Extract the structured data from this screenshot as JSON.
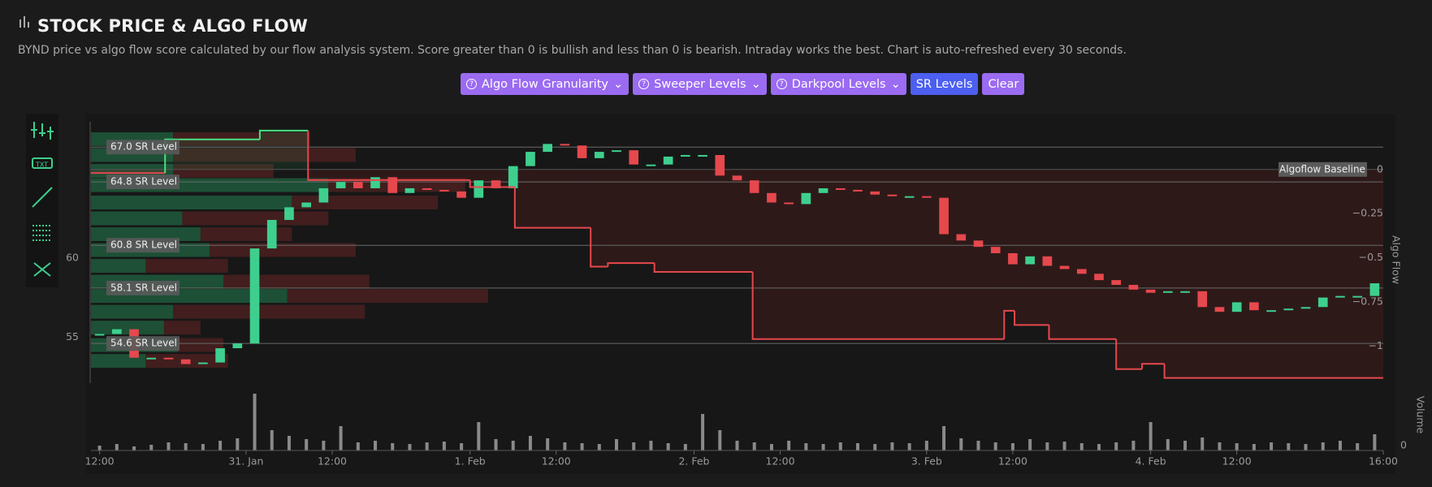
{
  "header": {
    "title": "STOCK PRICE & ALGO FLOW",
    "description": "BYND price vs algo flow score calculated by our flow analysis system. Score greater than 0 is bullish and less than 0 is bearish. Intraday works the best. Chart is auto-refreshed every 30 seconds."
  },
  "controls": [
    "Algo Flow Granularity",
    "Sweeper Levels",
    "Darkpool Levels",
    "SR Levels",
    "Clear"
  ],
  "chart_data": {
    "type": "candlestick",
    "xlim": [
      0,
      75
    ],
    "xticks": [
      {
        "value": 0.5,
        "label": "12:00"
      },
      {
        "value": 9,
        "label": "31. Jan"
      },
      {
        "value": 14,
        "label": "12:00"
      },
      {
        "value": 22,
        "label": "1. Feb"
      },
      {
        "value": 27,
        "label": "12:00"
      },
      {
        "value": 35,
        "label": "2. Feb"
      },
      {
        "value": 40,
        "label": "12:00"
      },
      {
        "value": 48.5,
        "label": "3. Feb"
      },
      {
        "value": 53.5,
        "label": "12:00"
      },
      {
        "value": 61.5,
        "label": "4. Feb"
      },
      {
        "value": 66.5,
        "label": "12:00"
      },
      {
        "value": 75,
        "label": "16:00"
      }
    ],
    "ylim": [
      52.2,
      68.6
    ],
    "yticks": [
      55,
      60
    ],
    "close": [
      55.2,
      55.5,
      53.7,
      53.7,
      53.6,
      53.3,
      53.4,
      54.3,
      54.6,
      60.6,
      62.4,
      63.2,
      63.5,
      64.4,
      64.8,
      64.4,
      65.1,
      64.1,
      64.4,
      64.3,
      64.2,
      63.8,
      64.9,
      64.4,
      65.8,
      66.7,
      67.2,
      67.1,
      66.3,
      66.7,
      66.8,
      65.9,
      65.9,
      66.4,
      66.5,
      66.5,
      65.2,
      64.9,
      64.1,
      63.5,
      63.4,
      64.1,
      64.4,
      64.3,
      64.2,
      64.0,
      63.9,
      63.9,
      63.8,
      61.5,
      61.1,
      60.7,
      60.3,
      59.6,
      60.1,
      59.5,
      59.3,
      59.0,
      58.6,
      58.3,
      58.0,
      57.8,
      57.9,
      57.9,
      56.9,
      56.6,
      57.2,
      56.7,
      56.7,
      56.8,
      56.9,
      57.5,
      57.6,
      57.6,
      58.4
    ],
    "up_color": "#3ecf8e",
    "down_color": "#e5484d",
    "sr_levels": [
      {
        "value": 67.0,
        "label": "67.0 SR Level"
      },
      {
        "value": 64.8,
        "label": "64.8 SR Level"
      },
      {
        "value": 60.8,
        "label": "60.8 SR Level"
      },
      {
        "value": 58.1,
        "label": "58.1 SR Level"
      },
      {
        "value": 54.6,
        "label": "54.6 SR Level"
      }
    ],
    "algo_flow": {
      "name": "Algo Flow",
      "baseline_label": "Algoflow Baseline",
      "x": [
        0,
        4.3,
        9.8,
        12.6,
        22,
        24.6,
        29,
        30,
        32.7,
        38.4,
        53,
        53.6,
        55.6,
        59.5,
        61,
        62.3
      ],
      "values": [
        -0.02,
        0.17,
        0.22,
        -0.06,
        -0.1,
        -0.33,
        -0.55,
        -0.53,
        -0.58,
        -0.96,
        -0.8,
        -0.88,
        -0.96,
        -1.13,
        -1.1,
        -1.18
      ],
      "positive_color": "#4ade80",
      "negative_color": "#e5484d"
    },
    "y2lim": [
      -1.2,
      0.27
    ],
    "y2ticks": [
      0,
      {
        "value": -0.25,
        "label": "−0.25"
      },
      {
        "value": -0.5,
        "label": "−0.5"
      },
      {
        "value": -0.75,
        "label": "−0.75"
      },
      {
        "value": -1,
        "label": "−1"
      }
    ],
    "volume": {
      "name": "Volume",
      "color": "#8a8a8a",
      "ylim": [
        0,
        80
      ],
      "yticks": [
        0
      ],
      "values": [
        6,
        8,
        5,
        7,
        10,
        9,
        8,
        12,
        15,
        70,
        25,
        18,
        14,
        12,
        30,
        10,
        12,
        9,
        8,
        10,
        11,
        9,
        35,
        14,
        12,
        18,
        15,
        10,
        9,
        8,
        14,
        10,
        12,
        9,
        8,
        45,
        25,
        12,
        10,
        8,
        12,
        9,
        8,
        10,
        9,
        8,
        10,
        9,
        12,
        30,
        15,
        12,
        10,
        9,
        14,
        10,
        11,
        9,
        8,
        10,
        12,
        35,
        14,
        12,
        16,
        10,
        9,
        8,
        10,
        9,
        8,
        10,
        12,
        9,
        20
      ]
    },
    "volume_profile": {
      "levels": [
        67.5,
        66.5,
        65.5,
        64.6,
        63.5,
        62.5,
        61.5,
        60.5,
        59.5,
        58.5,
        57.6,
        56.6,
        55.6,
        54.5,
        53.5
      ],
      "buy": [
        90,
        90,
        90,
        260,
        220,
        100,
        120,
        130,
        60,
        145,
        215,
        90,
        80,
        95,
        60
      ],
      "sell": [
        150,
        200,
        110,
        150,
        160,
        160,
        100,
        160,
        90,
        160,
        220,
        210,
        40,
        50,
        90
      ],
      "buy_color": "#1f5a3c",
      "sell_color": "#4a2020"
    }
  }
}
